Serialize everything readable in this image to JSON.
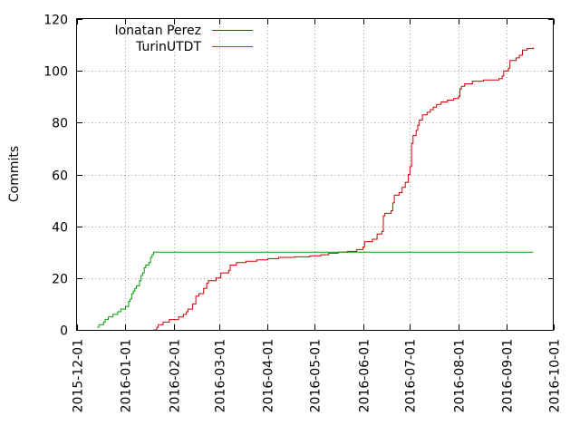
{
  "chart_data": {
    "type": "line",
    "title": "",
    "xlabel": "",
    "ylabel": "Commits",
    "ylim": [
      0,
      120
    ],
    "y_ticks": [
      0,
      20,
      40,
      60,
      80,
      100,
      120
    ],
    "xlim": [
      "2015-12-01",
      "2016-10-01"
    ],
    "x_ticks": [
      "2015-12-01",
      "2016-01-01",
      "2016-02-01",
      "2016-03-01",
      "2016-04-01",
      "2016-05-01",
      "2016-06-01",
      "2016-07-01",
      "2016-08-01",
      "2016-09-01",
      "2016-10-01"
    ],
    "grid": true,
    "legend_position": "top-left",
    "series": [
      {
        "name": "Ionatan Perez",
        "color": "#cc0000",
        "step": true,
        "points": [
          [
            "2016-01-19",
            0
          ],
          [
            "2016-01-21",
            1
          ],
          [
            "2016-01-22",
            2
          ],
          [
            "2016-01-25",
            3
          ],
          [
            "2016-01-29",
            4
          ],
          [
            "2016-02-04",
            5
          ],
          [
            "2016-02-07",
            6
          ],
          [
            "2016-02-09",
            7
          ],
          [
            "2016-02-10",
            8
          ],
          [
            "2016-02-13",
            10
          ],
          [
            "2016-02-15",
            13
          ],
          [
            "2016-02-17",
            14
          ],
          [
            "2016-02-20",
            16
          ],
          [
            "2016-02-22",
            18
          ],
          [
            "2016-02-23",
            19
          ],
          [
            "2016-02-28",
            20
          ],
          [
            "2016-03-02",
            22
          ],
          [
            "2016-03-07",
            23
          ],
          [
            "2016-03-08",
            25
          ],
          [
            "2016-03-12",
            26
          ],
          [
            "2016-03-18",
            26.5
          ],
          [
            "2016-03-25",
            27
          ],
          [
            "2016-04-01",
            27.5
          ],
          [
            "2016-04-08",
            28
          ],
          [
            "2016-04-18",
            28.2
          ],
          [
            "2016-04-28",
            28.6
          ],
          [
            "2016-05-05",
            29
          ],
          [
            "2016-05-10",
            29.6
          ],
          [
            "2016-05-16",
            30
          ],
          [
            "2016-05-22",
            30.3
          ],
          [
            "2016-05-28",
            31
          ],
          [
            "2016-06-01",
            32
          ],
          [
            "2016-06-02",
            34
          ],
          [
            "2016-06-07",
            35
          ],
          [
            "2016-06-10",
            37
          ],
          [
            "2016-06-13",
            38
          ],
          [
            "2016-06-14",
            44
          ],
          [
            "2016-06-15",
            45
          ],
          [
            "2016-06-19",
            46
          ],
          [
            "2016-06-20",
            49
          ],
          [
            "2016-06-21",
            52
          ],
          [
            "2016-06-24",
            53
          ],
          [
            "2016-06-26",
            55
          ],
          [
            "2016-06-28",
            57
          ],
          [
            "2016-06-30",
            60
          ],
          [
            "2016-07-01",
            63
          ],
          [
            "2016-07-02",
            72
          ],
          [
            "2016-07-03",
            75
          ],
          [
            "2016-07-05",
            77
          ],
          [
            "2016-07-06",
            79
          ],
          [
            "2016-07-07",
            81
          ],
          [
            "2016-07-09",
            83
          ],
          [
            "2016-07-12",
            84
          ],
          [
            "2016-07-14",
            85
          ],
          [
            "2016-07-16",
            86
          ],
          [
            "2016-07-18",
            87
          ],
          [
            "2016-07-21",
            88
          ],
          [
            "2016-07-25",
            88.7
          ],
          [
            "2016-07-29",
            89.3
          ],
          [
            "2016-08-01",
            90
          ],
          [
            "2016-08-02",
            93
          ],
          [
            "2016-08-03",
            94
          ],
          [
            "2016-08-05",
            95
          ],
          [
            "2016-08-10",
            96
          ],
          [
            "2016-08-17",
            96.5
          ],
          [
            "2016-08-27",
            97
          ],
          [
            "2016-08-29",
            98
          ],
          [
            "2016-08-30",
            100
          ],
          [
            "2016-09-02",
            101
          ],
          [
            "2016-09-03",
            104
          ],
          [
            "2016-09-07",
            105
          ],
          [
            "2016-09-09",
            106
          ],
          [
            "2016-09-11",
            108
          ],
          [
            "2016-09-14",
            108.6
          ],
          [
            "2016-09-18",
            109
          ]
        ]
      },
      {
        "name": "TurinUTDT",
        "color": "#00a000",
        "step": true,
        "points": [
          [
            "2015-12-14",
            1
          ],
          [
            "2015-12-15",
            2
          ],
          [
            "2015-12-18",
            3
          ],
          [
            "2015-12-19",
            4
          ],
          [
            "2015-12-21",
            5
          ],
          [
            "2015-12-24",
            6
          ],
          [
            "2015-12-27",
            7
          ],
          [
            "2015-12-29",
            8
          ],
          [
            "2016-01-01",
            9
          ],
          [
            "2016-01-03",
            11
          ],
          [
            "2016-01-04",
            12
          ],
          [
            "2016-01-05",
            14
          ],
          [
            "2016-01-06",
            15
          ],
          [
            "2016-01-07",
            16
          ],
          [
            "2016-01-08",
            17
          ],
          [
            "2016-01-10",
            19
          ],
          [
            "2016-01-11",
            21
          ],
          [
            "2016-01-12",
            22
          ],
          [
            "2016-01-13",
            24
          ],
          [
            "2016-01-14",
            25
          ],
          [
            "2016-01-16",
            26
          ],
          [
            "2016-01-17",
            28
          ],
          [
            "2016-01-18",
            29
          ],
          [
            "2016-01-19",
            30
          ],
          [
            "2016-09-18",
            30
          ]
        ]
      }
    ]
  }
}
